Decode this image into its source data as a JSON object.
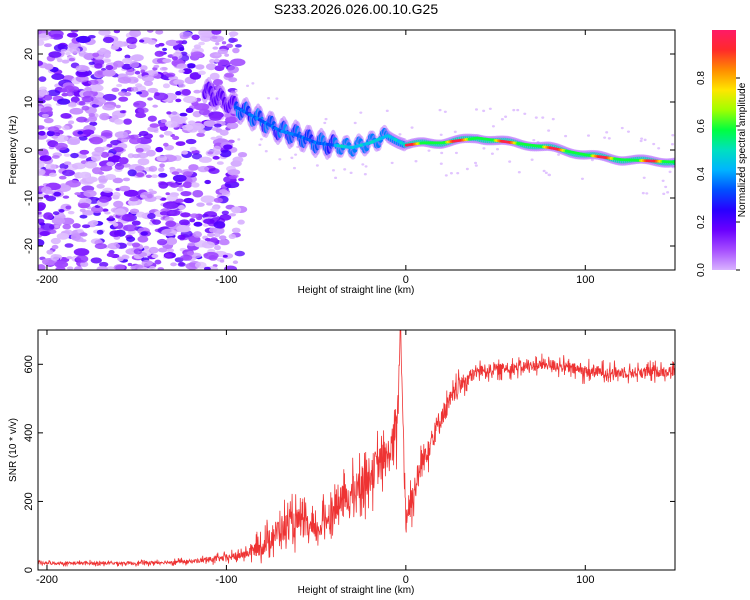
{
  "figure_title": "S233.2026.026.00.10.G25",
  "colors": {
    "spectrogram_cmap": [
      "#ffffff",
      "#d9b3ff",
      "#a64dff",
      "#6a00ff",
      "#2800ff",
      "#0050ff",
      "#00b4ff",
      "#00e0c0",
      "#00ff40",
      "#a0ff00",
      "#ffe600",
      "#ff8c00",
      "#ff2a2a",
      "#ff1a66"
    ],
    "snr_line": "#ee3333",
    "frame": "#000000"
  },
  "chart_data": [
    {
      "type": "heatmap",
      "title": "S233.2026.026.00.10.G25",
      "xlabel": "Height of straight line (km)",
      "ylabel": "Frequency (Hz)",
      "xlim": [
        -205,
        150
      ],
      "ylim": [
        -25,
        25
      ],
      "x_ticks": [
        -200,
        -100,
        0,
        100
      ],
      "x_tick_labels": [
        "-200",
        "-100",
        "0",
        "100"
      ],
      "y_ticks": [
        -20,
        -10,
        0,
        10,
        20
      ],
      "y_tick_labels": [
        "-20",
        "-10",
        "0",
        "10",
        "20"
      ],
      "colorbar": {
        "label": "Normalized spectral amplitude",
        "range": [
          0,
          1
        ],
        "ticks": [
          0.0,
          0.2,
          0.4,
          0.6,
          0.8
        ],
        "tick_labels": [
          "0.0",
          "0.2",
          "0.4",
          "0.6",
          "0.8"
        ]
      },
      "ridge": {
        "description": "frequency of dominant tone vs height",
        "x": [
          -110,
          -100,
          -90,
          -80,
          -70,
          -60,
          -50,
          -40,
          -30,
          -20,
          -10,
          0,
          10,
          20,
          40,
          60,
          80,
          100,
          120,
          150
        ],
        "y": [
          12,
          10,
          8,
          6,
          4,
          3,
          1.5,
          1,
          0.5,
          1.5,
          3,
          1,
          1.5,
          1.5,
          2.5,
          1.5,
          0.5,
          -1,
          -2,
          -2.5
        ]
      }
    },
    {
      "type": "line",
      "xlabel": "Height of straight line (km)",
      "ylabel": "SNR (10 * v/v)",
      "xlim": [
        -205,
        150
      ],
      "ylim": [
        0,
        700
      ],
      "x_ticks": [
        -200,
        -100,
        0,
        100
      ],
      "x_tick_labels": [
        "-200",
        "-100",
        "0",
        "100"
      ],
      "y_ticks": [
        0,
        200,
        400,
        600
      ],
      "y_tick_labels": [
        "0",
        "200",
        "400",
        "600"
      ],
      "series": [
        {
          "name": "SNR",
          "x": [
            -205,
            -180,
            -150,
            -120,
            -100,
            -90,
            -80,
            -70,
            -60,
            -50,
            -40,
            -30,
            -20,
            -10,
            -5,
            -3,
            0,
            10,
            20,
            30,
            40,
            60,
            80,
            100,
            120,
            150
          ],
          "y": [
            20,
            20,
            20,
            25,
            35,
            45,
            70,
            120,
            140,
            110,
            180,
            220,
            280,
            330,
            400,
            700,
            150,
            330,
            450,
            540,
            580,
            590,
            600,
            580,
            575,
            580
          ],
          "noise": [
            10,
            10,
            10,
            12,
            20,
            25,
            60,
            90,
            90,
            70,
            110,
            110,
            120,
            120,
            130,
            0,
            100,
            90,
            70,
            50,
            40,
            35,
            35,
            40,
            35,
            35
          ]
        }
      ]
    }
  ]
}
